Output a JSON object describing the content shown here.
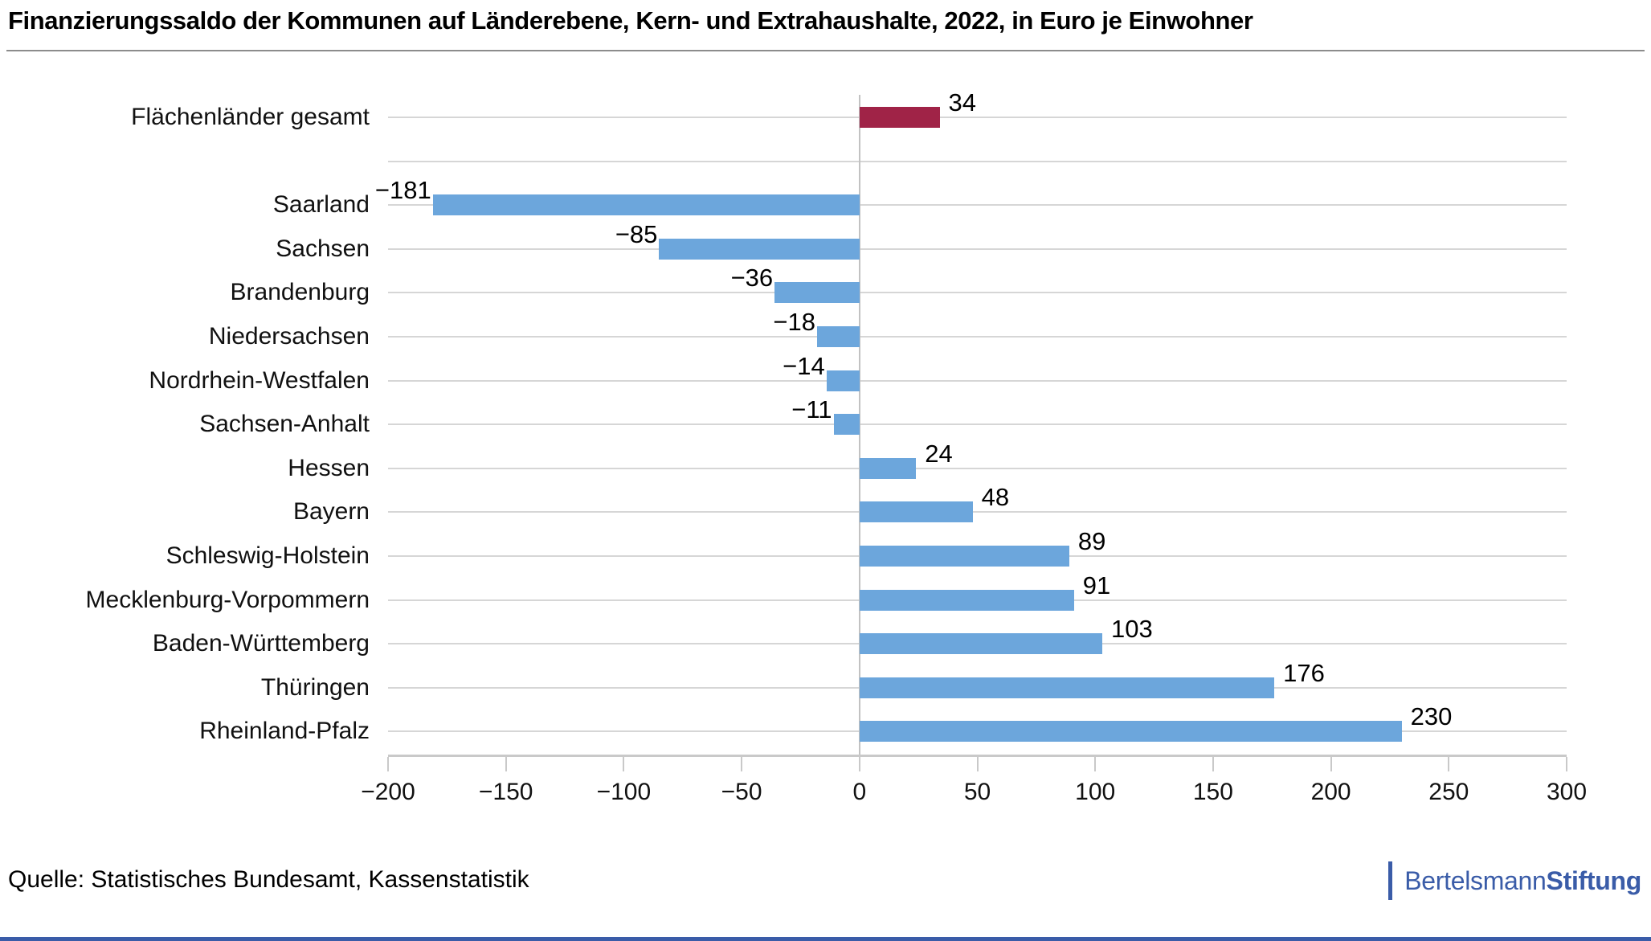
{
  "header": {
    "divider": true
  },
  "chart_data": {
    "type": "bar",
    "orientation": "horizontal",
    "title": "Finanzierungssaldo der Kommunen auf Länderebene, Kern- und Extrahaushalte, 2022, in Euro je Einwohner",
    "xlabel": "",
    "ylabel": "",
    "xlim": [
      -200,
      300
    ],
    "x_ticks": [
      -200,
      -150,
      -100,
      -50,
      0,
      50,
      100,
      150,
      200,
      250,
      300
    ],
    "x_tick_labels": [
      "−200",
      "−150",
      "−100",
      "−50",
      "0",
      "50",
      "100",
      "150",
      "200",
      "250",
      "300"
    ],
    "grid": "horizontal line per category row, vertical zero line",
    "legend": "none",
    "categories": [
      "Flächenländer gesamt",
      "Saarland",
      "Sachsen",
      "Brandenburg",
      "Niedersachsen",
      "Nordrhein-Westfalen",
      "Sachsen-Anhalt",
      "Hessen",
      "Bayern",
      "Schleswig-Holstein",
      "Mecklenburg-Vorpommern",
      "Baden-Württemberg",
      "Thüringen",
      "Rheinland-Pfalz"
    ],
    "values": [
      34,
      -181,
      -85,
      -36,
      -18,
      -14,
      -11,
      24,
      48,
      89,
      91,
      103,
      176,
      230
    ],
    "rows": [
      {
        "label": "Flächenländer gesamt",
        "value": 34,
        "value_label": "34",
        "highlight": true
      },
      {
        "spacer": true
      },
      {
        "label": "Saarland",
        "value": -181,
        "value_label": "−181"
      },
      {
        "label": "Sachsen",
        "value": -85,
        "value_label": "−85"
      },
      {
        "label": "Brandenburg",
        "value": -36,
        "value_label": "−36"
      },
      {
        "label": "Niedersachsen",
        "value": -18,
        "value_label": "−18"
      },
      {
        "label": "Nordrhein-Westfalen",
        "value": -14,
        "value_label": "−14"
      },
      {
        "label": "Sachsen-Anhalt",
        "value": -11,
        "value_label": "−11"
      },
      {
        "label": "Hessen",
        "value": 24,
        "value_label": "24"
      },
      {
        "label": "Bayern",
        "value": 48,
        "value_label": "48"
      },
      {
        "label": "Schleswig-Holstein",
        "value": 89,
        "value_label": "89"
      },
      {
        "label": "Mecklenburg-Vorpommern",
        "value": 91,
        "value_label": "91"
      },
      {
        "label": "Baden-Württemberg",
        "value": 103,
        "value_label": "103"
      },
      {
        "label": "Thüringen",
        "value": 176,
        "value_label": "176"
      },
      {
        "label": "Rheinland-Pfalz",
        "value": 230,
        "value_label": "230"
      }
    ],
    "colors": {
      "bar": "#6CA6DC",
      "highlight_bar": "#A02347",
      "gridline": "#D6D6D6",
      "axis": "#C9C9C9",
      "zero_line": "#C2C2C2"
    }
  },
  "footer": {
    "source": "Quelle: Statistisches Bundesamt, Kassenstatistik",
    "logo": {
      "prefix": "Bertelsmann",
      "suffix": "Stiftung",
      "color": "#3A5CA8"
    }
  }
}
